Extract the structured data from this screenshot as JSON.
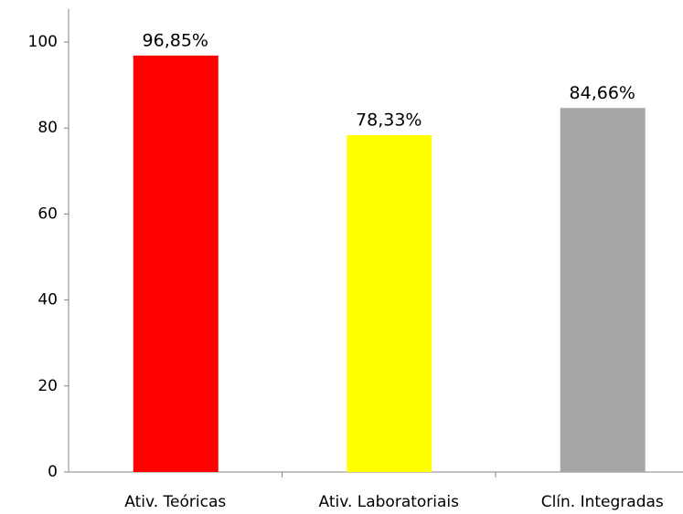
{
  "chart_data": {
    "type": "bar",
    "categories": [
      "Ativ. Teóricas",
      "Ativ. Laboratoriais",
      "Clín. Integradas"
    ],
    "values": [
      96.85,
      78.33,
      84.66
    ],
    "value_labels": [
      "96,85%",
      "78,33%",
      "84,66%"
    ],
    "colors": [
      "#ff0000",
      "#ffff00",
      "#a6a6a6"
    ],
    "ylim": [
      0,
      100
    ],
    "yticks": [
      0,
      20,
      40,
      60,
      80,
      100
    ],
    "grid": false
  }
}
